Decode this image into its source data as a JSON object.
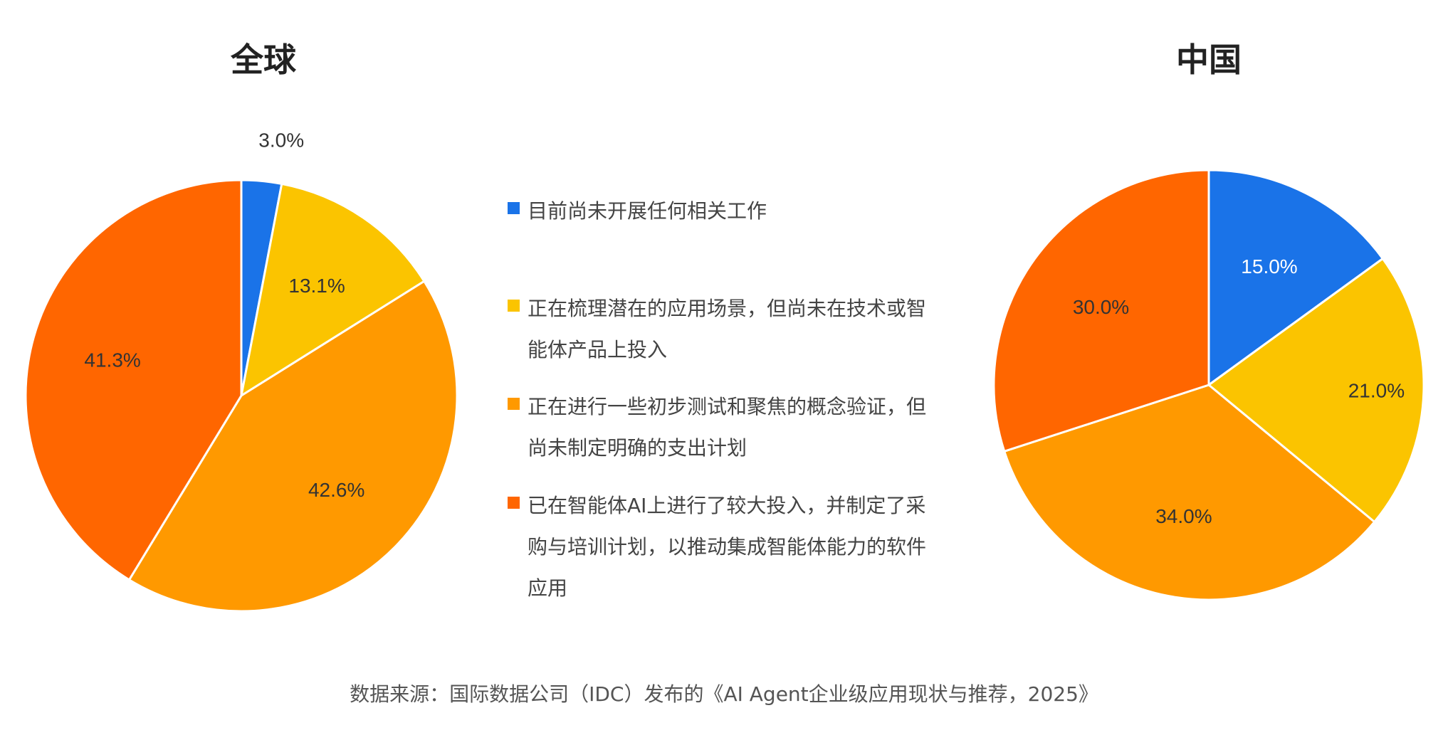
{
  "chart_data": [
    {
      "type": "pie",
      "title": "全球",
      "categories": [
        "目前尚未开展任何相关工作",
        "正在梳理潜在的应用场景，但尚未在技术或智能体产品上投入",
        "正在进行一些初步测试和聚焦的概念验证，但尚未制定明确的支出计划",
        "已在智能体AI上进行了较大投入，并制定了采购与培训计划，以推动集成智能体能力的软件应用"
      ],
      "values": [
        3.0,
        13.1,
        42.6,
        41.3
      ],
      "labels": [
        "3.0%",
        "13.1%",
        "42.6%",
        "41.3%"
      ]
    },
    {
      "type": "pie",
      "title": "中国",
      "categories": [
        "目前尚未开展任何相关工作",
        "正在梳理潜在的应用场景，但尚未在技术或智能体产品上投入",
        "正在进行一些初步测试和聚焦的概念验证，但尚未制定明确的支出计划",
        "已在智能体AI上进行了较大投入，并制定了采购与培训计划，以推动集成智能体能力的软件应用"
      ],
      "values": [
        15.0,
        21.0,
        34.0,
        30.0
      ],
      "labels": [
        "15.0%",
        "21.0%",
        "34.0%",
        "30.0%"
      ]
    }
  ],
  "legend": {
    "placement": "center",
    "items": [
      {
        "lines": [
          "目前尚未开展任何相关工作"
        ]
      },
      {
        "lines": [
          "正在梳理潜在的应用场景，但尚未在技术或智",
          "能体产品上投入"
        ]
      },
      {
        "lines": [
          "正在进行一些初步测试和聚焦的概念验证，但",
          "尚未制定明确的支出计划"
        ]
      },
      {
        "lines": [
          "已在智能体AI上进行了较大投入，并制定了采",
          "购与培训计划，以推动集成智能体能力的软件",
          "应用"
        ]
      }
    ]
  },
  "colors": [
    "#1a73e8",
    "#fbc400",
    "#ff9900",
    "#ff6600"
  ],
  "source": "数据来源：国际数据公司（IDC）发布的《AI Agent企业级应用现状与推荐，2025》"
}
